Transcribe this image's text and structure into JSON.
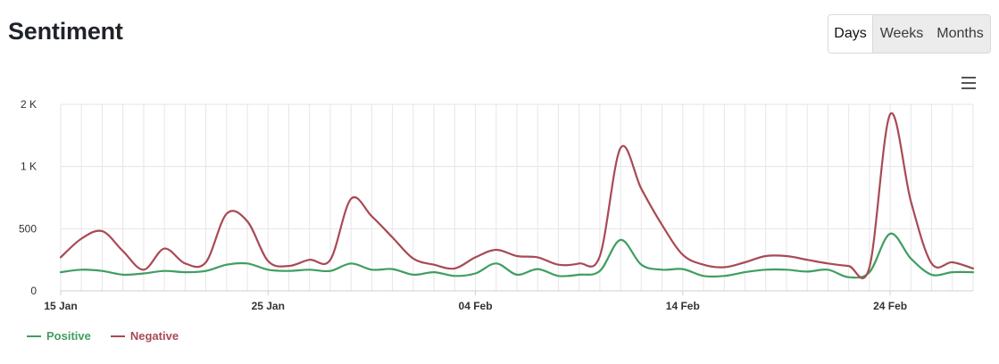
{
  "header": {
    "title": "Sentiment"
  },
  "range_toggle": {
    "options": [
      "Days",
      "Weeks",
      "Months"
    ],
    "selected": "Days"
  },
  "menu": {
    "icon": "hamburger-menu-icon"
  },
  "colors": {
    "positive": "#3f9e5f",
    "negative": "#a84a55",
    "grid": "#e6e6e6",
    "axis_text": "#333333"
  },
  "chart_data": {
    "type": "line",
    "x_tick_labels": [
      "15 Jan",
      "25 Jan",
      "04 Feb",
      "14 Feb",
      "24 Feb"
    ],
    "y_tick_labels": [
      "0",
      "500",
      "1 K",
      "2 K"
    ],
    "y_ticks": [
      0,
      500,
      1000,
      1500
    ],
    "ylim": [
      0,
      1500
    ],
    "grid": true,
    "legend_position": "bottom-left",
    "x": [
      "15 Jan",
      "16 Jan",
      "17 Jan",
      "18 Jan",
      "19 Jan",
      "20 Jan",
      "21 Jan",
      "22 Jan",
      "23 Jan",
      "24 Jan",
      "25 Jan",
      "26 Jan",
      "27 Jan",
      "28 Jan",
      "29 Jan",
      "30 Jan",
      "31 Jan",
      "01 Feb",
      "02 Feb",
      "03 Feb",
      "04 Feb",
      "05 Feb",
      "06 Feb",
      "07 Feb",
      "08 Feb",
      "09 Feb",
      "10 Feb",
      "11 Feb",
      "12 Feb",
      "13 Feb",
      "14 Feb",
      "15 Feb",
      "16 Feb",
      "17 Feb",
      "18 Feb",
      "19 Feb",
      "20 Feb",
      "21 Feb",
      "22 Feb",
      "23 Feb",
      "24 Feb",
      "25 Feb",
      "26 Feb",
      "27 Feb",
      "28 Feb"
    ],
    "series": [
      {
        "name": "Positive",
        "values": [
          150,
          170,
          160,
          130,
          140,
          160,
          150,
          160,
          210,
          220,
          170,
          160,
          170,
          160,
          220,
          170,
          175,
          130,
          150,
          120,
          140,
          220,
          130,
          175,
          120,
          130,
          160,
          410,
          210,
          170,
          175,
          120,
          120,
          150,
          170,
          170,
          155,
          170,
          110,
          150,
          460,
          260,
          130,
          150,
          150
        ]
      },
      {
        "name": "Negative",
        "values": [
          270,
          420,
          480,
          320,
          170,
          340,
          220,
          230,
          620,
          560,
          240,
          200,
          250,
          250,
          740,
          600,
          430,
          260,
          210,
          180,
          270,
          330,
          280,
          270,
          210,
          220,
          280,
          1150,
          820,
          530,
          290,
          210,
          190,
          230,
          280,
          280,
          250,
          220,
          200,
          190,
          1420,
          720,
          220,
          230,
          180
        ]
      }
    ]
  }
}
